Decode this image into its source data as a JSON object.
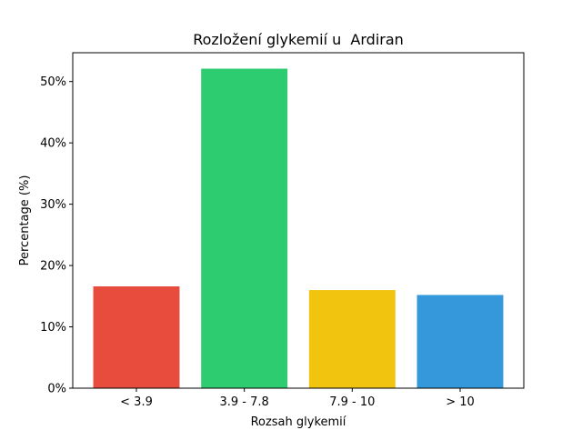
{
  "chart_data": {
    "type": "bar",
    "title": "Rozložení glykemií u  Ardiran",
    "xlabel": "Rozsah glykemií",
    "ylabel": "Percentage (%)",
    "categories": [
      "< 3.9",
      "3.9 - 7.8",
      "7.9 - 10",
      "> 10"
    ],
    "values": [
      16.6,
      52.1,
      16.0,
      15.2
    ],
    "colors": [
      "#e74c3c",
      "#2ecc71",
      "#f1c40f",
      "#3498db"
    ],
    "yticks": [
      0,
      10,
      20,
      30,
      40,
      50
    ],
    "ytick_labels": [
      "0%",
      "10%",
      "20%",
      "30%",
      "40%",
      "50%"
    ],
    "ylim": [
      0,
      54.7
    ],
    "grid": false,
    "legend": "none"
  }
}
